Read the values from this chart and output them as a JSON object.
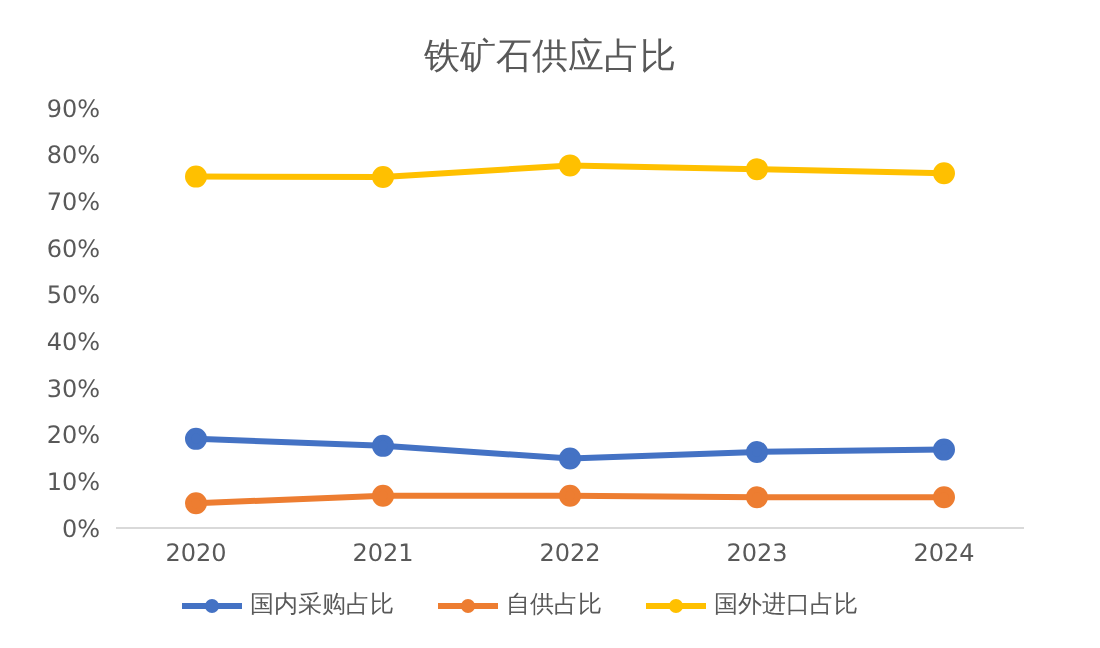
{
  "chart_data": {
    "type": "line",
    "title": "铁矿石供应占比",
    "categories": [
      "2020",
      "2021",
      "2022",
      "2023",
      "2024"
    ],
    "series": [
      {
        "name": "国内采购占比",
        "color": "#4472c4",
        "values": [
          19.1,
          17.6,
          14.9,
          16.3,
          16.8
        ]
      },
      {
        "name": "自供占比",
        "color": "#ed7d31",
        "values": [
          5.3,
          6.9,
          6.9,
          6.6,
          6.6
        ]
      },
      {
        "name": "国外进口占比",
        "color": "#ffc000",
        "values": [
          75.3,
          75.2,
          77.7,
          76.9,
          76.0
        ]
      }
    ],
    "ylim": [
      0,
      90
    ],
    "yticks": [
      {
        "value": 0,
        "label": "0%"
      },
      {
        "value": 10,
        "label": "10%"
      },
      {
        "value": 20,
        "label": "20%"
      },
      {
        "value": 30,
        "label": "30%"
      },
      {
        "value": 40,
        "label": "40%"
      },
      {
        "value": 50,
        "label": "50%"
      },
      {
        "value": 60,
        "label": "60%"
      },
      {
        "value": 70,
        "label": "70%"
      },
      {
        "value": 80,
        "label": "80%"
      },
      {
        "value": 90,
        "label": "90%"
      }
    ],
    "grid": false,
    "legend": "bottom",
    "marker": "circle",
    "line_style": "solid"
  }
}
